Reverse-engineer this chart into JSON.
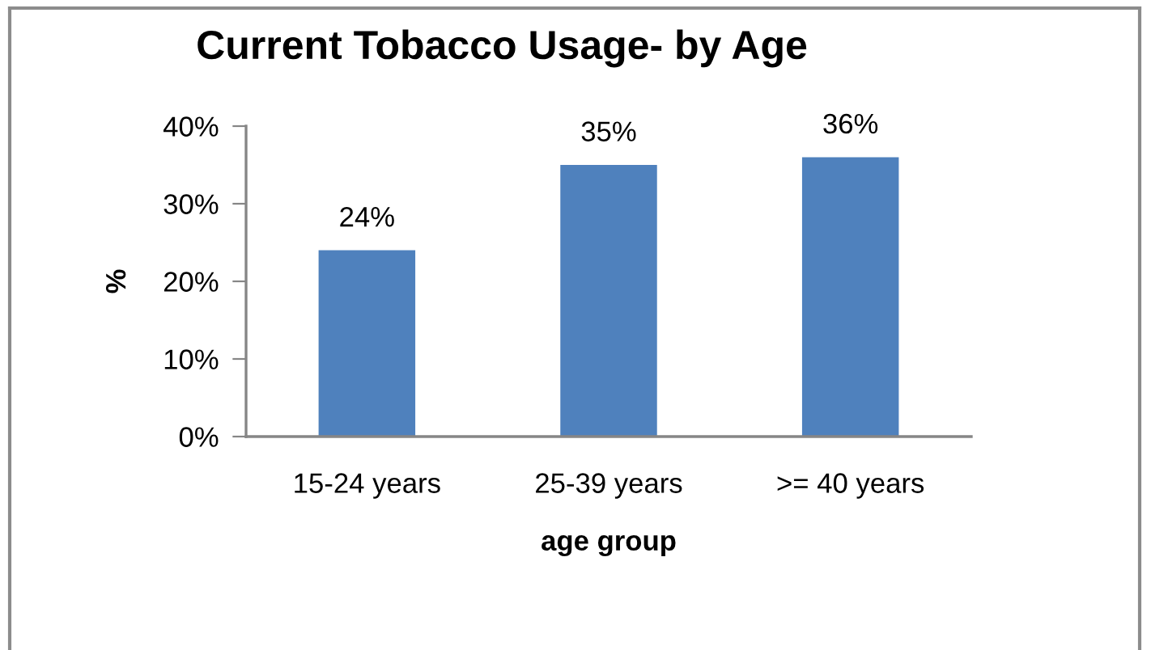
{
  "chart_data": {
    "type": "bar",
    "title": "Current Tobacco Usage- by Age",
    "xlabel": "age group",
    "ylabel": "%",
    "categories": [
      "15-24 years",
      "25-39 years",
      ">= 40 years"
    ],
    "values": [
      24,
      35,
      36
    ],
    "value_labels": [
      "24%",
      "35%",
      "36%"
    ],
    "color": "#4f81bd",
    "ylim": [
      0,
      40
    ],
    "yticks": [
      {
        "value": 0,
        "label": "0%"
      },
      {
        "value": 10,
        "label": "10%"
      },
      {
        "value": 20,
        "label": "20%"
      },
      {
        "value": 30,
        "label": "30%"
      },
      {
        "value": 40,
        "label": "40%"
      }
    ],
    "grid": false,
    "legend": false
  }
}
